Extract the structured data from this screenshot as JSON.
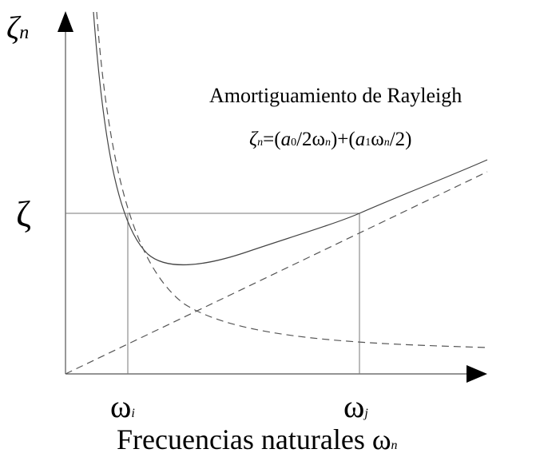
{
  "y_axis_label": {
    "symbol": "ζ",
    "subscript": "n"
  },
  "title": "Amortiguamiento de Rayleigh",
  "formula": [
    "ζ",
    "n",
    "=(",
    "a",
    "0",
    "/2ω",
    "n",
    ")+(",
    "a",
    "1",
    "ω",
    "n",
    "/2)"
  ],
  "y_marker": "ζ",
  "x_markers": [
    {
      "symbol": "ω",
      "subscript": "i"
    },
    {
      "symbol": "ω",
      "subscript": "j"
    }
  ],
  "x_axis_label": {
    "text": "Frecuencias naturales ω",
    "subscript": "n"
  }
}
